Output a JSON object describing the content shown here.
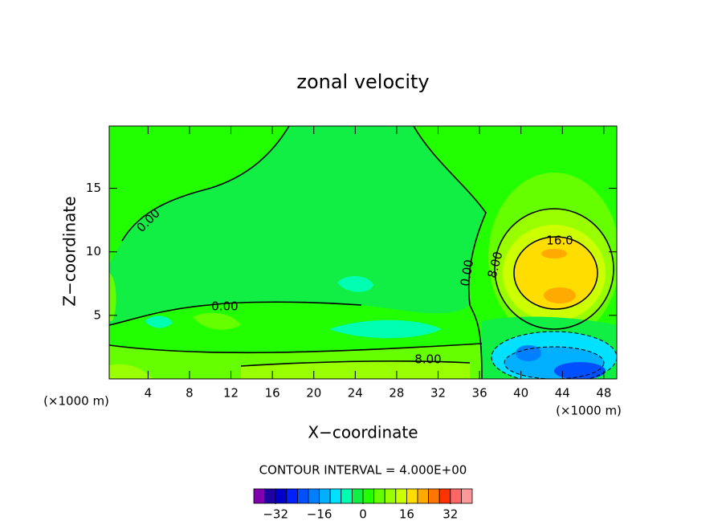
{
  "chart_data": {
    "type": "contour",
    "title": "zonal velocity",
    "x_label": "X−coordinate",
    "y_label": "Z−coordinate",
    "x_unit": "(×1000 m)",
    "y_unit": "(×1000 m)",
    "xlim": [
      0.25,
      49.25
    ],
    "xticks": [
      4,
      8,
      12,
      16,
      20,
      24,
      28,
      32,
      36,
      40,
      44,
      48
    ],
    "ylim": [
      0,
      19.9
    ],
    "yticks": [
      5,
      10,
      15
    ],
    "contour_interval_text": "CONTOUR INTERVAL = 4.000E+00",
    "contour_labels": [
      {
        "value": 0,
        "label": "0.00"
      },
      {
        "value": 0,
        "label": "0.00"
      },
      {
        "value": 0,
        "label": "0.00"
      },
      {
        "value": 8,
        "label": "8.00"
      },
      {
        "value": 8,
        "label": "8.00"
      },
      {
        "value": 16,
        "label": "16.0"
      }
    ],
    "colorbar": {
      "lim": [
        -40,
        40
      ],
      "ticks": [
        {
          "value": -32,
          "label": "−32"
        },
        {
          "value": -16,
          "label": "−16"
        },
        0,
        16,
        32
      ],
      "colors": [
        "#8000b0",
        "#2000a0",
        "#0000c8",
        "#0020ff",
        "#0050ff",
        "#0080ff",
        "#00b0ff",
        "#00e0ff",
        "#00ffb0",
        "#11ee44",
        "#22ff00",
        "#66ff00",
        "#99ff00",
        "#ccff00",
        "#ffdd00",
        "#ffaa00",
        "#ff7700",
        "#ff3300",
        "#ff6666",
        "#ff9999"
      ]
    }
  }
}
